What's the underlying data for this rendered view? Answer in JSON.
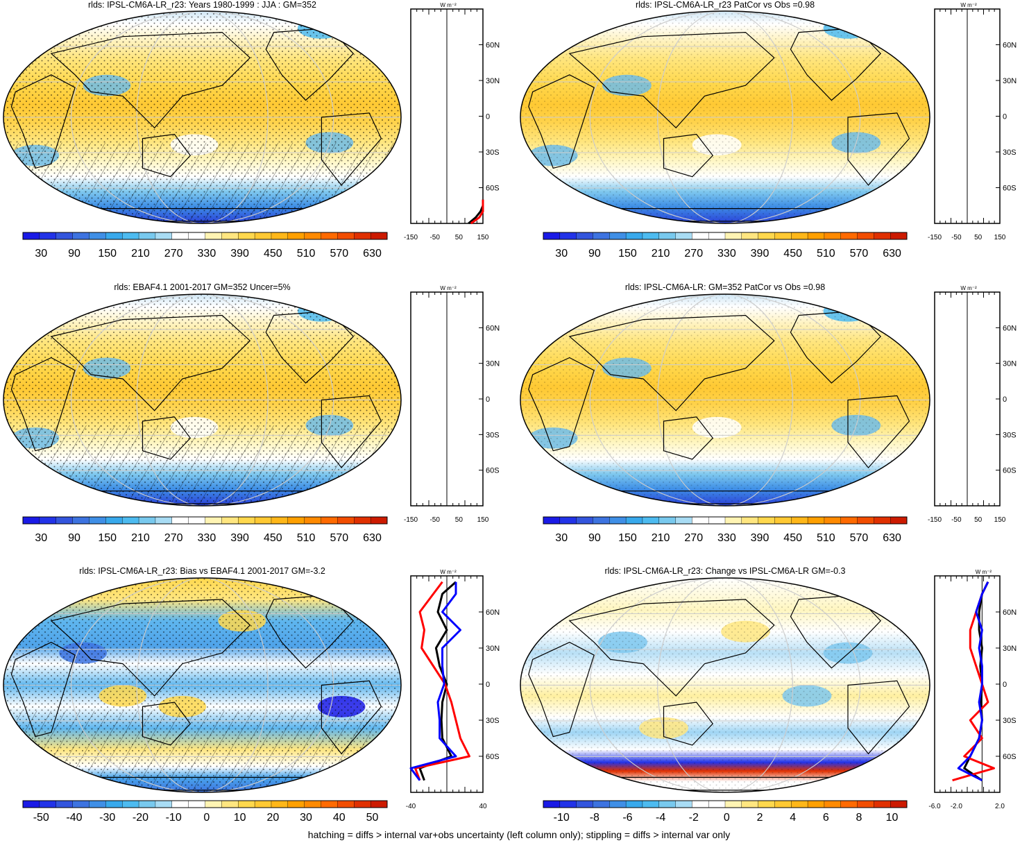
{
  "footer": "hatching = diffs > internal var+obs uncertainty (left column only); stippling = diffs > internal var only",
  "colors": {
    "abs_scale": [
      "#1a1ae6",
      "#2233e8",
      "#3355dd",
      "#3d73e0",
      "#3f8fe6",
      "#38a9ec",
      "#4dbbf0",
      "#78c9ee",
      "#a8dcf4",
      "#ffffff",
      "#ffffff",
      "#fff4b3",
      "#ffe680",
      "#ffd84d",
      "#ffc933",
      "#ffb719",
      "#ffa000",
      "#ff8a00",
      "#ff6a00",
      "#f24d00",
      "#e03000",
      "#cc1a00"
    ],
    "diff_scale": [
      "#1a1ae6",
      "#2233e8",
      "#3355dd",
      "#3d73e0",
      "#3f8fe6",
      "#38a9ec",
      "#4dbbf0",
      "#78c9ee",
      "#a8dcf4",
      "#ffffff",
      "#ffffff",
      "#fff4b3",
      "#ffe680",
      "#ffd84d",
      "#ffc933",
      "#ffb719",
      "#ffa000",
      "#ff8a00",
      "#ff6a00",
      "#f24d00",
      "#e03000",
      "#cc1a00"
    ],
    "profile_model": "#000000",
    "profile_obs": "#ff0000",
    "profile_alt": "#0000ff"
  },
  "lat_labels": [
    "60N",
    "30N",
    "0",
    "30S",
    "60S"
  ],
  "panels": [
    {
      "id": "p1",
      "title": "rlds: IPSL-CM6A-LR_r23: Years 1980-1999 : JJA : GM=352",
      "colorbar_labels": [
        "30",
        "90",
        "150",
        "210",
        "270",
        "330",
        "390",
        "450",
        "510",
        "570",
        "630"
      ],
      "profile_ticks": [
        "-150",
        "-50",
        "50",
        "150"
      ],
      "profile_unit": "W m⁻²",
      "style": "abs",
      "hatched": true
    },
    {
      "id": "p2",
      "title": "rlds: IPSL-CM6A-LR_r23 PatCor vs Obs =0.98",
      "colorbar_labels": [
        "30",
        "90",
        "150",
        "210",
        "270",
        "330",
        "390",
        "450",
        "510",
        "570",
        "630"
      ],
      "profile_ticks": [
        "-150",
        "-50",
        "50",
        "150"
      ],
      "profile_unit": "W m⁻²",
      "style": "abs",
      "hatched": false
    },
    {
      "id": "p3",
      "title": "rlds: EBAF4.1 2001-2017 GM=352 Uncer=5%",
      "colorbar_labels": [
        "30",
        "90",
        "150",
        "210",
        "270",
        "330",
        "390",
        "450",
        "510",
        "570",
        "630"
      ],
      "profile_ticks": [
        "-150",
        "-50",
        "50",
        "150"
      ],
      "profile_unit": "W m⁻²",
      "style": "abs",
      "hatched": true
    },
    {
      "id": "p4",
      "title": "rlds: IPSL-CM6A-LR: GM=352 PatCor vs Obs =0.98",
      "colorbar_labels": [
        "30",
        "90",
        "150",
        "210",
        "270",
        "330",
        "390",
        "450",
        "510",
        "570",
        "630"
      ],
      "profile_ticks": [
        "-150",
        "-50",
        "50",
        "150"
      ],
      "profile_unit": "W m⁻²",
      "style": "abs",
      "hatched": false
    },
    {
      "id": "p5",
      "title": "rlds: IPSL-CM6A-LR_r23: Bias vs EBAF4.1 2001-2017 GM=-3.2",
      "colorbar_labels": [
        "-50",
        "-40",
        "-30",
        "-20",
        "-10",
        "0",
        "10",
        "20",
        "30",
        "40",
        "50"
      ],
      "profile_ticks": [
        "-40",
        "",
        "",
        "40"
      ],
      "profile_unit": "W m⁻²",
      "style": "bias",
      "hatched": true
    },
    {
      "id": "p6",
      "title": "rlds: IPSL-CM6A-LR_r23: Change vs IPSL-CM6A-LR GM=-0.3",
      "colorbar_labels": [
        "-10",
        "-8",
        "-6",
        "-4",
        "-2",
        "0",
        "2",
        "4",
        "6",
        "8",
        "10"
      ],
      "profile_ticks": [
        "-6.0",
        "-2.0",
        "",
        "2.0"
      ],
      "profile_unit": "W m⁻²",
      "style": "change",
      "hatched": false
    }
  ],
  "chart_data": [
    {
      "type": "heatmap",
      "title": "rlds: IPSL-CM6A-LR_r23: Years 1980-1999 : JJA : GM=352",
      "colorbar": {
        "min": 0,
        "max": 660,
        "step": 30,
        "labels": [
          30,
          90,
          150,
          210,
          270,
          330,
          390,
          450,
          510,
          570,
          630
        ]
      },
      "zonal_profile": {
        "xlim": [
          -150,
          150
        ],
        "lat_labels": [
          "60N",
          "30N",
          "0",
          "30S",
          "60S"
        ],
        "series": [
          {
            "color": "black",
            "lat": [
              -90,
              -85,
              -80,
              -75,
              -70
            ],
            "value": [
              90,
              120,
              140,
              150,
              150
            ]
          },
          {
            "color": "red",
            "lat": [
              -90,
              -85,
              -80,
              -75,
              -70
            ],
            "value": [
              100,
              135,
              150,
              150,
              150
            ]
          }
        ]
      }
    },
    {
      "type": "heatmap",
      "title": "rlds: IPSL-CM6A-LR_r23 PatCor vs Obs =0.98",
      "colorbar": {
        "min": 0,
        "max": 660,
        "step": 30,
        "labels": [
          30,
          90,
          150,
          210,
          270,
          330,
          390,
          450,
          510,
          570,
          630
        ]
      },
      "zonal_profile": {
        "xlim": [
          -150,
          150
        ],
        "lat_labels": [
          "60N",
          "30N",
          "0",
          "30S",
          "60S"
        ]
      }
    },
    {
      "type": "heatmap",
      "title": "rlds: EBAF4.1 2001-2017 GM=352 Uncer=5%",
      "colorbar": {
        "min": 0,
        "max": 660,
        "step": 30,
        "labels": [
          30,
          90,
          150,
          210,
          270,
          330,
          390,
          450,
          510,
          570,
          630
        ]
      },
      "zonal_profile": {
        "xlim": [
          -150,
          150
        ],
        "lat_labels": [
          "60N",
          "30N",
          "0",
          "30S",
          "60S"
        ]
      }
    },
    {
      "type": "heatmap",
      "title": "rlds: IPSL-CM6A-LR: GM=352 PatCor vs Obs =0.98",
      "colorbar": {
        "min": 0,
        "max": 660,
        "step": 30,
        "labels": [
          30,
          90,
          150,
          210,
          270,
          330,
          390,
          450,
          510,
          570,
          630
        ]
      },
      "zonal_profile": {
        "xlim": [
          -150,
          150
        ],
        "lat_labels": [
          "60N",
          "30N",
          "0",
          "30S",
          "60S"
        ]
      }
    },
    {
      "type": "heatmap",
      "title": "rlds: IPSL-CM6A-LR_r23: Bias vs EBAF4.1 2001-2017 GM=-3.2",
      "colorbar": {
        "min": -55,
        "max": 55,
        "step": 5,
        "labels": [
          -50,
          -40,
          -30,
          -20,
          -10,
          0,
          10,
          20,
          30,
          40,
          50
        ]
      },
      "zonal_profile": {
        "xlim": [
          -40,
          40
        ],
        "lat_labels": [
          "60N",
          "30N",
          "0",
          "30S",
          "60S"
        ],
        "series": [
          {
            "color": "black",
            "lat": [
              85,
              75,
              60,
              45,
              30,
              15,
              0,
              -15,
              -30,
              -45,
              -60,
              -70,
              -80
            ],
            "value": [
              10,
              -5,
              -10,
              0,
              -12,
              -8,
              0,
              -5,
              -6,
              -5,
              5,
              -30,
              -25
            ]
          },
          {
            "color": "red",
            "lat": [
              85,
              75,
              60,
              45,
              30,
              15,
              0,
              -15,
              -30,
              -45,
              -60,
              -70,
              -80
            ],
            "value": [
              -5,
              -15,
              -30,
              -25,
              -28,
              -15,
              -2,
              5,
              10,
              15,
              25,
              -35,
              -30
            ]
          },
          {
            "color": "blue",
            "lat": [
              85,
              75,
              60,
              45,
              30,
              15,
              0,
              -15,
              -30,
              -45,
              -60,
              -70,
              -80
            ],
            "value": [
              10,
              10,
              -5,
              15,
              -5,
              -5,
              -3,
              -10,
              -8,
              -8,
              10,
              -40,
              -30
            ]
          }
        ]
      }
    },
    {
      "type": "heatmap",
      "title": "rlds: IPSL-CM6A-LR_r23: Change vs IPSL-CM6A-LR GM=-0.3",
      "colorbar": {
        "min": -11,
        "max": 11,
        "step": 1,
        "labels": [
          -10,
          -8,
          -6,
          -4,
          -2,
          0,
          2,
          4,
          6,
          8,
          10
        ]
      },
      "zonal_profile": {
        "xlim": [
          -8,
          3
        ],
        "lat_labels": [
          "60N",
          "30N",
          "0",
          "30S",
          "60S"
        ],
        "series": [
          {
            "color": "black",
            "lat": [
              85,
              75,
              60,
              45,
              30,
              15,
              0,
              -15,
              -30,
              -45,
              -60,
              -70,
              -80
            ],
            "value": [
              1,
              0,
              -0.5,
              -0.5,
              0,
              -0.3,
              0,
              -0.2,
              0,
              -0.5,
              -2,
              -3,
              0
            ]
          },
          {
            "color": "red",
            "lat": [
              85,
              75,
              60,
              45,
              30,
              15,
              0,
              -15,
              -30,
              -45,
              -60,
              -70,
              -80
            ],
            "value": [
              1,
              0,
              -1,
              -2,
              -2,
              -1,
              0,
              1,
              -2,
              0,
              -3,
              2,
              -5
            ]
          },
          {
            "color": "blue",
            "lat": [
              85,
              75,
              60,
              45,
              30,
              15,
              0,
              -15,
              -30,
              -45,
              -60,
              -70,
              -80
            ],
            "value": [
              1,
              0,
              -1,
              0,
              -0.5,
              0,
              0,
              -0.5,
              0,
              -0.5,
              -2,
              -4,
              0
            ]
          }
        ]
      }
    }
  ]
}
